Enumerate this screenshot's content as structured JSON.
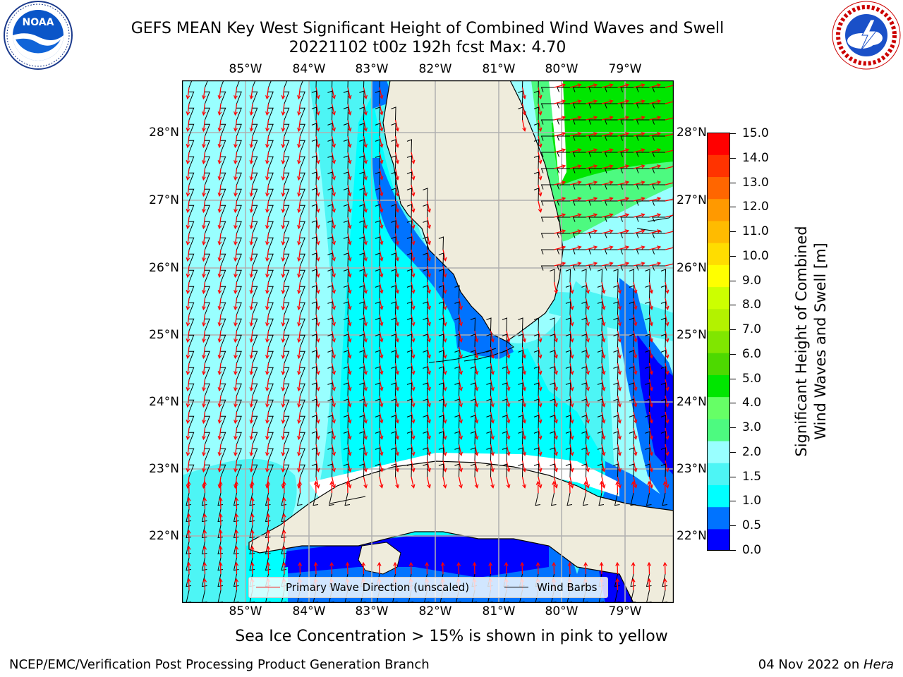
{
  "title": {
    "line1": "GEFS MEAN Key West Significant Height of Combined Wind Waves and Swell",
    "line2": "20221102 t00z 192h fcst   Max: 4.70"
  },
  "logos": {
    "left": "NOAA",
    "left_ring_text": "NATIONAL OCEANIC AND ATMOSPHERIC ADMINISTRATION · U.S. DEPARTMENT OF COMMERCE",
    "right_ring_text": "NATIONAL WEATHER SERVICE"
  },
  "map": {
    "lon_labels": [
      "85°W",
      "84°W",
      "83°W",
      "82°W",
      "81°W",
      "80°W",
      "79°W"
    ],
    "lat_labels": [
      "28°N",
      "27°N",
      "26°N",
      "25°N",
      "24°N",
      "23°N",
      "22°N"
    ],
    "colors": {
      "land": "#efecdc",
      "coast": "#000000",
      "grid": "#b0b0b0",
      "arrows": "#ff0000",
      "barbs": "#000000"
    }
  },
  "colorbar": {
    "title_line1": "Significant Height of Combined",
    "title_line2": "Wind Waves and Swell [m]",
    "ticks": [
      "15.0",
      "14.0",
      "13.0",
      "12.0",
      "11.0",
      "10.0",
      "9.0",
      "8.0",
      "7.0",
      "6.0",
      "5.0",
      "4.0",
      "3.0",
      "2.0",
      "1.5",
      "1.0",
      "0.5",
      "0.0"
    ],
    "colors": [
      "#0000ff",
      "#0073ff",
      "#00ffff",
      "#4df5f5",
      "#99ffff",
      "#4dfa80",
      "#66ff66",
      "#00e600",
      "#4dd900",
      "#80e600",
      "#b3f200",
      "#ccff00",
      "#ffff00",
      "#ffdd00",
      "#ffbb00",
      "#ff9900",
      "#ff6600",
      "#ff3300",
      "#ff0000"
    ]
  },
  "legend": {
    "wave_label": "Primary Wave Direction (unscaled)",
    "barb_label": "Wind Barbs"
  },
  "footer": {
    "ice_note": "Sea Ice Concentration > 15% is shown in pink to yellow",
    "left": "NCEP/EMC/Verification Post Processing Product Generation Branch",
    "right_prefix": "04 Nov 2022 on ",
    "right_host": "Hera"
  }
}
